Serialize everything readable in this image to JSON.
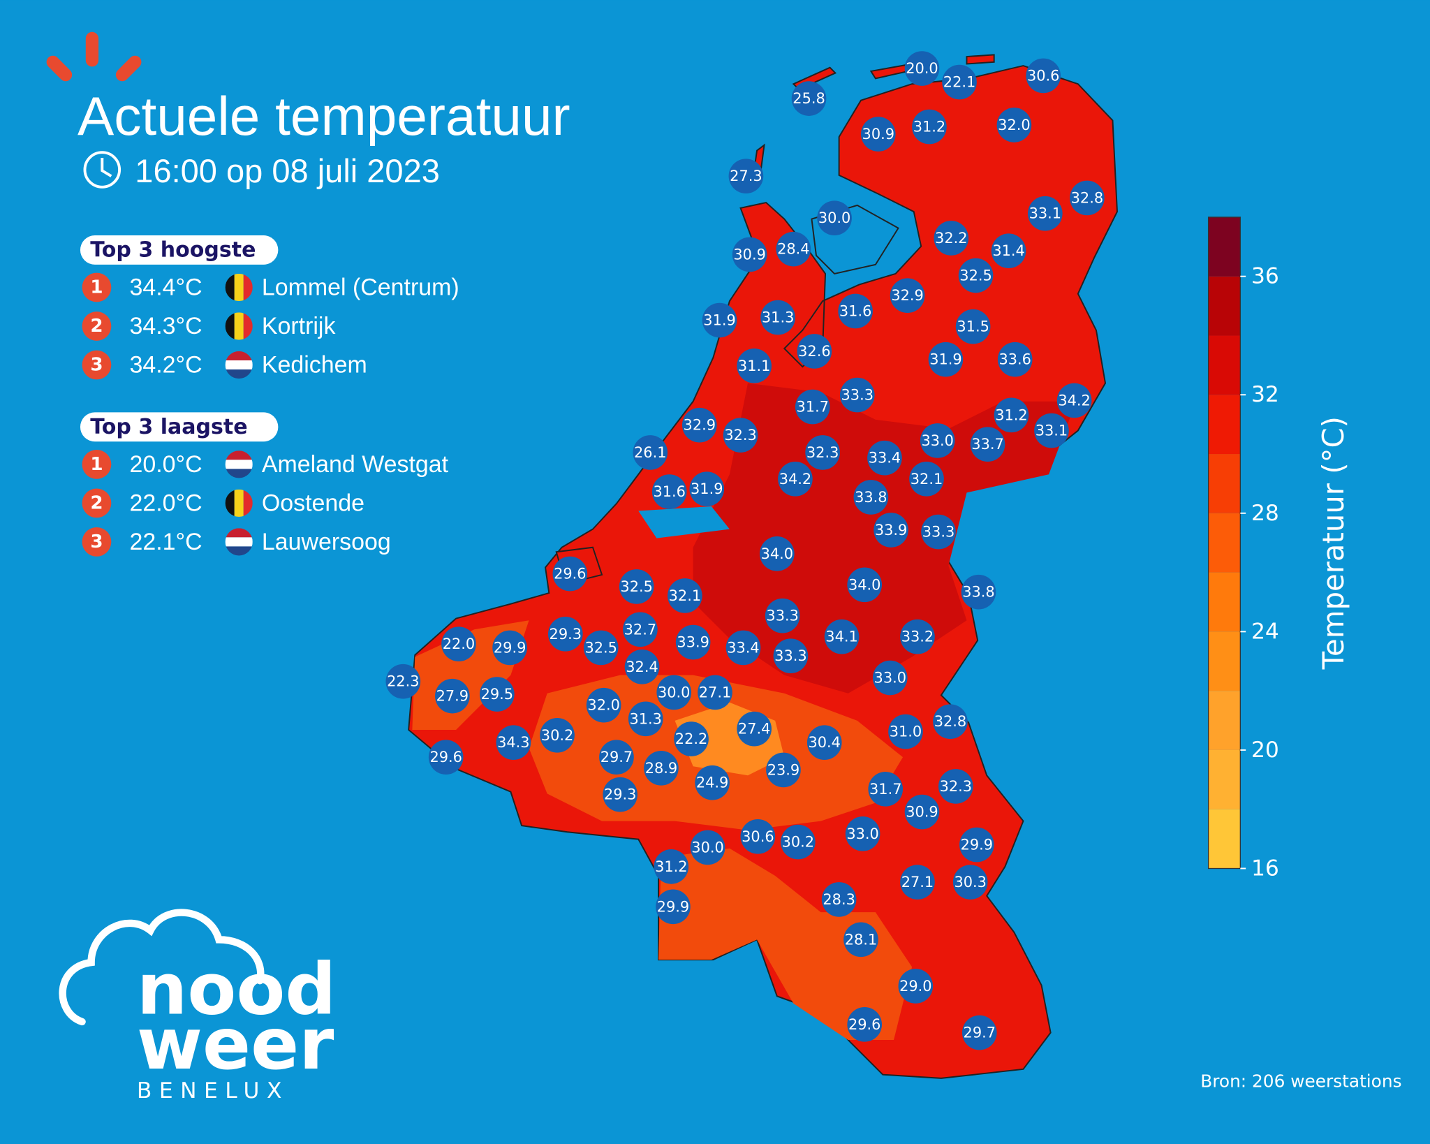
{
  "title": "Actuele temperatuur",
  "time": "16:00 op 08 juli 2023",
  "highest": {
    "heading": "Top 3 hoogste",
    "rows": [
      {
        "rank": "1",
        "temp": "34.4°C",
        "flag": "BE",
        "name": "Lommel (Centrum)"
      },
      {
        "rank": "2",
        "temp": "34.3°C",
        "flag": "BE",
        "name": "Kortrijk"
      },
      {
        "rank": "3",
        "temp": "34.2°C",
        "flag": "NL",
        "name": "Kedichem"
      }
    ]
  },
  "lowest": {
    "heading": "Top 3 laagste",
    "rows": [
      {
        "rank": "1",
        "temp": "20.0°C",
        "flag": "NL",
        "name": "Ameland Westgat"
      },
      {
        "rank": "2",
        "temp": "22.0°C",
        "flag": "BE",
        "name": "Oostende"
      },
      {
        "rank": "3",
        "temp": "22.1°C",
        "flag": "NL",
        "name": "Lauwersoog"
      }
    ]
  },
  "stations": [
    "20.0",
    "22.1",
    "30.6",
    "25.8",
    "30.9",
    "31.2",
    "32.0",
    "27.3",
    "30.0",
    "33.1",
    "32.8",
    "32.2",
    "31.4",
    "30.9",
    "28.4",
    "32.5",
    "32.9",
    "31.6",
    "31.9",
    "31.3",
    "31.5",
    "32.6",
    "31.1",
    "31.9",
    "33.6",
    "33.3",
    "31.7",
    "34.2",
    "31.2",
    "33.1",
    "32.9",
    "32.3",
    "33.0",
    "33.7",
    "26.1",
    "32.3",
    "33.4",
    "32.1",
    "34.2",
    "31.6",
    "31.9",
    "33.8",
    "33.9",
    "33.3",
    "34.0",
    "29.6",
    "32.5",
    "32.1",
    "34.0",
    "33.8",
    "33.3",
    "29.3",
    "32.7",
    "22.0",
    "29.9",
    "32.5",
    "33.9",
    "33.4",
    "33.3",
    "34.1",
    "33.2",
    "32.4",
    "22.3",
    "33.0",
    "27.9",
    "29.5",
    "30.0",
    "27.1",
    "32.0",
    "31.3",
    "27.4",
    "32.8",
    "22.2",
    "30.2",
    "34.3",
    "30.4",
    "31.0",
    "29.6",
    "29.7",
    "28.9",
    "24.9",
    "23.9",
    "31.7",
    "32.3",
    "29.3",
    "30.9",
    "30.0",
    "30.6",
    "30.2",
    "33.0",
    "29.9",
    "31.2",
    "27.1",
    "30.3",
    "28.3",
    "29.9",
    "28.1",
    "29.0",
    "29.6",
    "29.7"
  ],
  "colorbar": {
    "label": "Temperatuur (°C)",
    "lim": [
      16,
      38
    ],
    "ticks": [
      16,
      20,
      24,
      28,
      32,
      36
    ],
    "colors": [
      "#ffc637",
      "#ffb132",
      "#ffa22b",
      "#ff8f16",
      "#ff7a0c",
      "#fc5c08",
      "#f73e05",
      "#ef1a04",
      "#d90a05",
      "#b80406",
      "#7d0320"
    ]
  },
  "logo": {
    "line1": "nood",
    "line2": "weer",
    "line3": "BENELUX"
  },
  "source": "Bron: 206 weerstations"
}
